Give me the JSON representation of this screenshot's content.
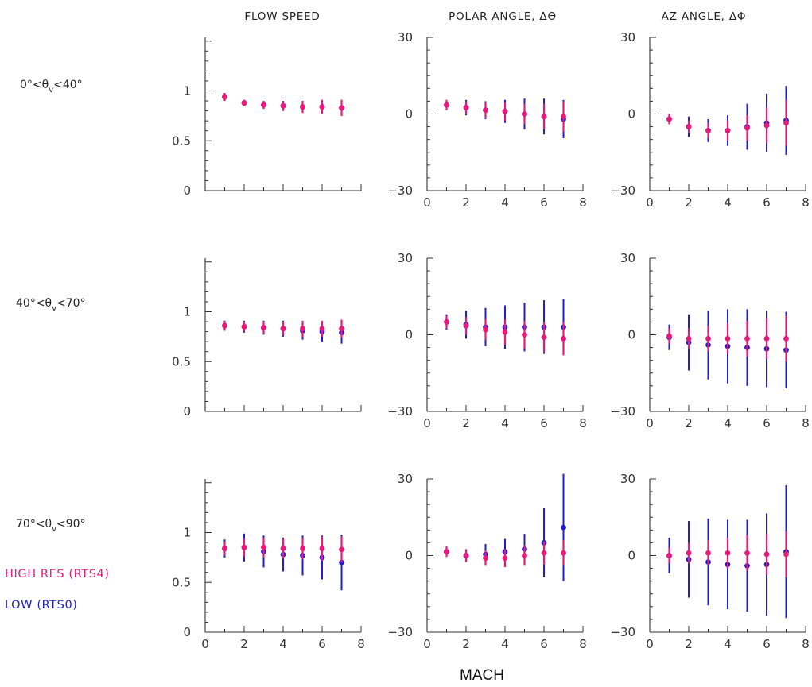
{
  "column_titles": [
    "FLOW SPEED",
    "POLAR ANGLE, ΔΘ",
    "AZ ANGLE, ΔΦ"
  ],
  "row_labels": [
    {
      "prefix": "0°<θ",
      "sub": "v",
      "suffix": "<40°"
    },
    {
      "prefix": "40°<θ",
      "sub": "v",
      "suffix": "<70°"
    },
    {
      "prefix": "70°<θ",
      "sub": "v",
      "suffix": "<90°"
    }
  ],
  "legend": [
    {
      "label": "HIGH RES (RTS4)",
      "color": "#e8197a"
    },
    {
      "label": "LOW (RTS0)",
      "color": "#1f1fd0"
    }
  ],
  "xlabel": "MACH",
  "colors": {
    "high": "#e8197a",
    "low": "#1f1fd0"
  },
  "chart_data": [
    {
      "type": "scatter",
      "row": 0,
      "col": 0,
      "xlim": [
        0,
        8
      ],
      "ylim": [
        0,
        1.5
      ],
      "xticks": [],
      "yticks": [
        0,
        0.5,
        1
      ],
      "series": [
        {
          "name": "HIGH RES (RTS4)",
          "color": "#e8197a",
          "x": [
            1,
            2,
            3,
            4,
            5,
            6,
            7
          ],
          "y": [
            0.94,
            0.88,
            0.86,
            0.85,
            0.84,
            0.84,
            0.83
          ],
          "err": [
            0.04,
            0.03,
            0.04,
            0.05,
            0.06,
            0.07,
            0.08
          ]
        },
        {
          "name": "LOW (RTS0)",
          "color": "#1f1fd0",
          "x": [
            1,
            2,
            3,
            4,
            5,
            6,
            7
          ],
          "y": [
            0.94,
            0.88,
            0.86,
            0.85,
            0.84,
            0.84,
            0.83
          ],
          "err": [
            0.04,
            0.03,
            0.04,
            0.05,
            0.06,
            0.07,
            0.08
          ]
        }
      ]
    },
    {
      "type": "scatter",
      "row": 0,
      "col": 1,
      "xlim": [
        0,
        8
      ],
      "ylim": [
        -30,
        30
      ],
      "xticks": [
        0,
        2,
        4,
        6,
        8
      ],
      "yticks": [
        -30,
        0,
        30
      ],
      "series": [
        {
          "name": "HIGH RES (RTS4)",
          "color": "#e8197a",
          "x": [
            1,
            2,
            3,
            4,
            5,
            6,
            7
          ],
          "y": [
            3.5,
            2.5,
            1.5,
            1,
            0,
            -1,
            -1
          ],
          "err": [
            2,
            2.5,
            3,
            3.5,
            4,
            5,
            6
          ]
        },
        {
          "name": "LOW (RTS0)",
          "color": "#1f1fd0",
          "x": [
            1,
            2,
            3,
            4,
            5,
            6,
            7
          ],
          "y": [
            3.5,
            2.5,
            1.5,
            1,
            0,
            -1,
            -2
          ],
          "err": [
            2,
            3,
            3.5,
            4.5,
            6,
            7,
            7.5
          ]
        }
      ]
    },
    {
      "type": "scatter",
      "row": 0,
      "col": 2,
      "xlim": [
        0,
        8
      ],
      "ylim": [
        -30,
        30
      ],
      "xticks": [
        0,
        2,
        4,
        6,
        8
      ],
      "yticks": [
        -30,
        0,
        30
      ],
      "series": [
        {
          "name": "HIGH RES (RTS4)",
          "color": "#e8197a",
          "x": [
            1,
            2,
            3,
            4,
            5,
            6,
            7
          ],
          "y": [
            -2,
            -5,
            -6.5,
            -6.5,
            -5.5,
            -4.5,
            -3.5
          ],
          "err": [
            2,
            2.5,
            3,
            4,
            5,
            7,
            9
          ]
        },
        {
          "name": "LOW (RTS0)",
          "color": "#1f1fd0",
          "x": [
            1,
            2,
            3,
            4,
            5,
            6,
            7
          ],
          "y": [
            -2,
            -5,
            -6.5,
            -6.5,
            -5,
            -3.5,
            -2.5
          ],
          "err": [
            2,
            4,
            4.5,
            6,
            9,
            11.5,
            13.5
          ]
        }
      ]
    },
    {
      "type": "scatter",
      "row": 1,
      "col": 0,
      "xlim": [
        0,
        8
      ],
      "ylim": [
        0,
        1.5
      ],
      "xticks": [],
      "yticks": [
        0,
        0.5,
        1
      ],
      "series": [
        {
          "name": "HIGH RES (RTS4)",
          "color": "#e8197a",
          "x": [
            1,
            2,
            3,
            4,
            5,
            6,
            7
          ],
          "y": [
            0.86,
            0.85,
            0.84,
            0.83,
            0.83,
            0.83,
            0.83
          ],
          "err": [
            0.05,
            0.05,
            0.06,
            0.07,
            0.08,
            0.08,
            0.09
          ]
        },
        {
          "name": "LOW (RTS0)",
          "color": "#1f1fd0",
          "x": [
            1,
            2,
            3,
            4,
            5,
            6,
            7
          ],
          "y": [
            0.86,
            0.85,
            0.84,
            0.83,
            0.81,
            0.8,
            0.79
          ],
          "err": [
            0.05,
            0.06,
            0.07,
            0.08,
            0.09,
            0.1,
            0.11
          ]
        }
      ]
    },
    {
      "type": "scatter",
      "row": 1,
      "col": 1,
      "xlim": [
        0,
        8
      ],
      "ylim": [
        -30,
        30
      ],
      "xticks": [
        0,
        2,
        4,
        6,
        8
      ],
      "yticks": [
        -30,
        0,
        30
      ],
      "series": [
        {
          "name": "HIGH RES (RTS4)",
          "color": "#e8197a",
          "x": [
            1,
            2,
            3,
            4,
            5,
            6,
            7
          ],
          "y": [
            5,
            3.5,
            2,
            1,
            0,
            -1,
            -1.5
          ],
          "err": [
            2.5,
            3.5,
            4,
            5,
            5.5,
            6,
            6.5
          ]
        },
        {
          "name": "LOW (RTS0)",
          "color": "#1f1fd0",
          "x": [
            1,
            2,
            3,
            4,
            5,
            6,
            7
          ],
          "y": [
            5,
            4,
            3,
            3,
            3,
            3,
            3
          ],
          "err": [
            3,
            5.5,
            7.5,
            8.5,
            9.5,
            10.5,
            11
          ]
        }
      ]
    },
    {
      "type": "scatter",
      "row": 1,
      "col": 2,
      "xlim": [
        0,
        8
      ],
      "ylim": [
        -30,
        30
      ],
      "xticks": [
        0,
        2,
        4,
        6,
        8
      ],
      "yticks": [
        -30,
        0,
        30
      ],
      "series": [
        {
          "name": "HIGH RES (RTS4)",
          "color": "#e8197a",
          "x": [
            1,
            2,
            3,
            4,
            5,
            6,
            7
          ],
          "y": [
            -0.5,
            -1.5,
            -1.5,
            -1.5,
            -1.5,
            -1.5,
            -1.5
          ],
          "err": [
            3,
            4,
            5,
            6,
            7,
            8,
            9
          ]
        },
        {
          "name": "LOW (RTS0)",
          "color": "#1f1fd0",
          "x": [
            1,
            2,
            3,
            4,
            5,
            6,
            7
          ],
          "y": [
            -1,
            -3,
            -4,
            -4.5,
            -5,
            -5.5,
            -6
          ],
          "err": [
            5,
            11,
            13.5,
            14.5,
            15,
            15,
            15
          ]
        }
      ]
    },
    {
      "type": "scatter",
      "row": 2,
      "col": 0,
      "xlim": [
        0,
        8
      ],
      "ylim": [
        0,
        1.5
      ],
      "xticks": [
        0,
        2,
        4,
        6,
        8
      ],
      "yticks": [
        0,
        0.5,
        1
      ],
      "series": [
        {
          "name": "HIGH RES (RTS4)",
          "color": "#e8197a",
          "x": [
            1,
            2,
            3,
            4,
            5,
            6,
            7
          ],
          "y": [
            0.84,
            0.85,
            0.85,
            0.84,
            0.84,
            0.84,
            0.83
          ],
          "err": [
            0.07,
            0.09,
            0.1,
            0.1,
            0.11,
            0.12,
            0.13
          ]
        },
        {
          "name": "LOW (RTS0)",
          "color": "#1f1fd0",
          "x": [
            1,
            2,
            3,
            4,
            5,
            6,
            7
          ],
          "y": [
            0.84,
            0.85,
            0.81,
            0.78,
            0.77,
            0.75,
            0.7
          ],
          "err": [
            0.09,
            0.14,
            0.16,
            0.17,
            0.2,
            0.22,
            0.28
          ]
        }
      ]
    },
    {
      "type": "scatter",
      "row": 2,
      "col": 1,
      "xlim": [
        0,
        8
      ],
      "ylim": [
        -30,
        30
      ],
      "xticks": [
        0,
        2,
        4,
        6,
        8
      ],
      "yticks": [
        -30,
        0,
        30
      ],
      "series": [
        {
          "name": "HIGH RES (RTS4)",
          "color": "#e8197a",
          "x": [
            1,
            2,
            3,
            4,
            5,
            6,
            7
          ],
          "y": [
            1.5,
            0,
            -1,
            -1,
            0,
            1,
            1
          ],
          "err": [
            2,
            2.5,
            3,
            3.5,
            4,
            4.5,
            5
          ]
        },
        {
          "name": "LOW (RTS0)",
          "color": "#1f1fd0",
          "x": [
            1,
            2,
            3,
            4,
            5,
            6,
            7
          ],
          "y": [
            1.5,
            0,
            0.5,
            1.5,
            2.5,
            5,
            11
          ]
        },
        {
          "name": "LOW (RTS0) err",
          "color": "#1f1fd0",
          "x": [
            1,
            2,
            3,
            4,
            5,
            6,
            7
          ],
          "err": [
            2,
            2.5,
            4,
            5,
            6,
            13.5,
            21
          ]
        }
      ]
    },
    {
      "type": "scatter",
      "row": 2,
      "col": 2,
      "xlim": [
        0,
        8
      ],
      "ylim": [
        -30,
        30
      ],
      "xticks": [
        0,
        2,
        4,
        6,
        8
      ],
      "yticks": [
        -30,
        0,
        30
      ],
      "series": [
        {
          "name": "HIGH RES (RTS4)",
          "color": "#e8197a",
          "x": [
            1,
            2,
            3,
            4,
            5,
            6,
            7
          ],
          "y": [
            0,
            1,
            1,
            1,
            1,
            0.5,
            0.5
          ],
          "err": [
            3,
            4,
            5,
            6,
            7,
            8,
            9
          ]
        },
        {
          "name": "LOW (RTS0)",
          "color": "#1f1fd0",
          "x": [
            1,
            2,
            3,
            4,
            5,
            6,
            7
          ],
          "y": [
            0,
            -1.5,
            -2.5,
            -3.5,
            -4,
            -3.5,
            1.5
          ],
          "err": [
            7,
            15,
            17,
            17.5,
            18,
            20,
            26
          ]
        }
      ]
    }
  ]
}
